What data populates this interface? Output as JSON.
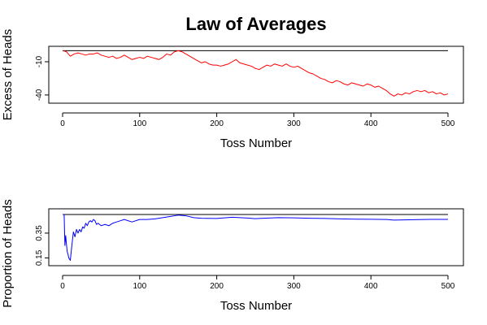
{
  "page": {
    "title": "Law of Averages"
  },
  "chart_data": [
    {
      "type": "line",
      "xlabel": "Toss Number",
      "ylabel": "Excess of Heads",
      "xlim": [
        0,
        500
      ],
      "ylim": [
        -43,
        1
      ],
      "x_ticks": [
        0,
        100,
        200,
        300,
        400,
        500
      ],
      "y_ticks": [
        -40,
        -10
      ],
      "reference_line": {
        "y": 0,
        "color": "#000000"
      },
      "grid": false,
      "series": [
        {
          "color": "#ff0000",
          "points": [
            [
              1,
              0
            ],
            [
              5,
              -1
            ],
            [
              10,
              -5
            ],
            [
              15,
              -3
            ],
            [
              20,
              -2
            ],
            [
              25,
              -3
            ],
            [
              30,
              -4
            ],
            [
              35,
              -3
            ],
            [
              40,
              -3
            ],
            [
              45,
              -2
            ],
            [
              50,
              -4
            ],
            [
              55,
              -5
            ],
            [
              60,
              -6
            ],
            [
              65,
              -5
            ],
            [
              70,
              -7
            ],
            [
              75,
              -6
            ],
            [
              80,
              -4
            ],
            [
              85,
              -6
            ],
            [
              90,
              -8
            ],
            [
              95,
              -7
            ],
            [
              100,
              -6
            ],
            [
              105,
              -7
            ],
            [
              110,
              -5
            ],
            [
              115,
              -6
            ],
            [
              120,
              -7
            ],
            [
              125,
              -8
            ],
            [
              130,
              -6
            ],
            [
              135,
              -3
            ],
            [
              140,
              -4
            ],
            [
              145,
              -1
            ],
            [
              150,
              0
            ],
            [
              155,
              -1
            ],
            [
              160,
              -3
            ],
            [
              165,
              -5
            ],
            [
              170,
              -7
            ],
            [
              175,
              -9
            ],
            [
              180,
              -11
            ],
            [
              185,
              -10
            ],
            [
              190,
              -12
            ],
            [
              195,
              -13
            ],
            [
              200,
              -13
            ],
            [
              205,
              -14
            ],
            [
              210,
              -13
            ],
            [
              215,
              -12
            ],
            [
              220,
              -10
            ],
            [
              225,
              -8
            ],
            [
              230,
              -11
            ],
            [
              235,
              -12
            ],
            [
              240,
              -13
            ],
            [
              245,
              -14
            ],
            [
              250,
              -16
            ],
            [
              255,
              -17
            ],
            [
              260,
              -15
            ],
            [
              265,
              -13
            ],
            [
              270,
              -14
            ],
            [
              275,
              -12
            ],
            [
              280,
              -13
            ],
            [
              285,
              -14
            ],
            [
              290,
              -12
            ],
            [
              295,
              -14
            ],
            [
              300,
              -15
            ],
            [
              305,
              -14
            ],
            [
              310,
              -16
            ],
            [
              315,
              -18
            ],
            [
              320,
              -20
            ],
            [
              325,
              -21
            ],
            [
              330,
              -23
            ],
            [
              335,
              -25
            ],
            [
              340,
              -26
            ],
            [
              345,
              -28
            ],
            [
              350,
              -29
            ],
            [
              355,
              -27
            ],
            [
              360,
              -28
            ],
            [
              365,
              -30
            ],
            [
              370,
              -31
            ],
            [
              375,
              -29
            ],
            [
              380,
              -30
            ],
            [
              385,
              -31
            ],
            [
              390,
              -32
            ],
            [
              395,
              -30
            ],
            [
              400,
              -31
            ],
            [
              405,
              -33
            ],
            [
              410,
              -32
            ],
            [
              415,
              -34
            ],
            [
              420,
              -36
            ],
            [
              425,
              -39
            ],
            [
              430,
              -41
            ],
            [
              435,
              -39
            ],
            [
              440,
              -40
            ],
            [
              445,
              -38
            ],
            [
              450,
              -39
            ],
            [
              455,
              -37
            ],
            [
              460,
              -36
            ],
            [
              465,
              -37
            ],
            [
              470,
              -36
            ],
            [
              475,
              -38
            ],
            [
              480,
              -37
            ],
            [
              485,
              -39
            ],
            [
              490,
              -38
            ],
            [
              495,
              -40
            ],
            [
              500,
              -39
            ]
          ]
        }
      ]
    },
    {
      "type": "line",
      "xlabel": "Toss Number",
      "ylabel": "Proportion of Heads",
      "xlim": [
        0,
        500
      ],
      "ylim": [
        0.12,
        0.52
      ],
      "x_ticks": [
        0,
        100,
        200,
        300,
        400,
        500
      ],
      "y_ticks": [
        0.15,
        0.35
      ],
      "reference_line": {
        "y": 0.5,
        "color": "#000000"
      },
      "grid": false,
      "series": [
        {
          "color": "#0000ff",
          "points": [
            [
              1,
              0.5
            ],
            [
              2,
              0.5
            ],
            [
              3,
              0.25
            ],
            [
              4,
              0.33
            ],
            [
              5,
              0.26
            ],
            [
              6,
              0.2
            ],
            [
              7,
              0.18
            ],
            [
              8,
              0.15
            ],
            [
              9,
              0.14
            ],
            [
              10,
              0.13
            ],
            [
              12,
              0.25
            ],
            [
              14,
              0.36
            ],
            [
              16,
              0.32
            ],
            [
              18,
              0.38
            ],
            [
              20,
              0.35
            ],
            [
              22,
              0.38
            ],
            [
              24,
              0.36
            ],
            [
              26,
              0.4
            ],
            [
              28,
              0.39
            ],
            [
              30,
              0.43
            ],
            [
              32,
              0.41
            ],
            [
              34,
              0.44
            ],
            [
              36,
              0.45
            ],
            [
              38,
              0.44
            ],
            [
              40,
              0.46
            ],
            [
              42,
              0.45
            ],
            [
              44,
              0.42
            ],
            [
              46,
              0.43
            ],
            [
              50,
              0.41
            ],
            [
              55,
              0.42
            ],
            [
              60,
              0.41
            ],
            [
              65,
              0.43
            ],
            [
              70,
              0.44
            ],
            [
              75,
              0.45
            ],
            [
              80,
              0.46
            ],
            [
              90,
              0.44
            ],
            [
              100,
              0.46
            ],
            [
              110,
              0.46
            ],
            [
              120,
              0.465
            ],
            [
              130,
              0.475
            ],
            [
              140,
              0.485
            ],
            [
              150,
              0.495
            ],
            [
              160,
              0.49
            ],
            [
              170,
              0.475
            ],
            [
              180,
              0.47
            ],
            [
              200,
              0.468
            ],
            [
              220,
              0.478
            ],
            [
              240,
              0.472
            ],
            [
              250,
              0.467
            ],
            [
              260,
              0.47
            ],
            [
              280,
              0.475
            ],
            [
              300,
              0.473
            ],
            [
              320,
              0.47
            ],
            [
              340,
              0.468
            ],
            [
              360,
              0.465
            ],
            [
              380,
              0.463
            ],
            [
              400,
              0.462
            ],
            [
              420,
              0.46
            ],
            [
              430,
              0.455
            ],
            [
              450,
              0.458
            ],
            [
              470,
              0.46
            ],
            [
              480,
              0.461
            ],
            [
              500,
              0.461
            ]
          ]
        }
      ]
    }
  ]
}
